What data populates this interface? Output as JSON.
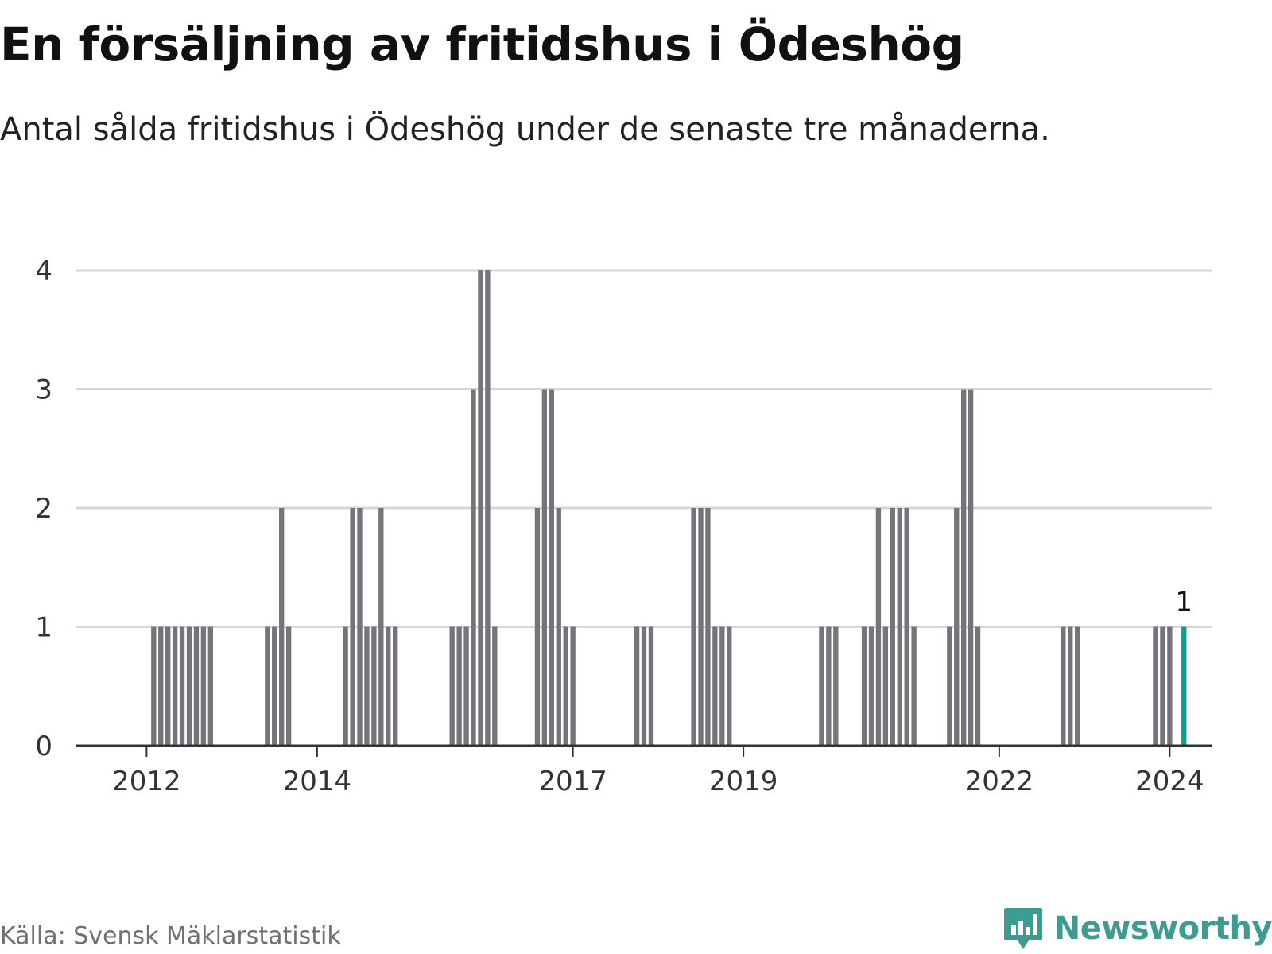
{
  "title": "En försäljning av fritidshus i Ödeshög",
  "subtitle": "Antal sålda fritidshus i Ödeshög under de senaste tre månaderna.",
  "source": "Källa: Svensk Mäklarstatistik",
  "brand": "Newsworthy",
  "colors": {
    "bar": "#75747a",
    "highlight": "#139c8e",
    "grid": "#d6d6d6",
    "axis": "#333333",
    "brand": "#3e9b91"
  },
  "chart_data": {
    "type": "bar",
    "title": "En försäljning av fritidshus i Ödeshög",
    "xlabel": "",
    "ylabel": "",
    "ylim": [
      0,
      4
    ],
    "yticks": [
      "0",
      "1",
      "2",
      "3",
      "4"
    ],
    "xticks": [
      "2012",
      "2014",
      "2017",
      "2019",
      "2022",
      "2024"
    ],
    "xlim": [
      "2011-03",
      "2024-07"
    ],
    "highlight_label": "1",
    "series": [
      {
        "name": "Antal sålda fritidshus",
        "points": [
          [
            "2012-02",
            1
          ],
          [
            "2012-03",
            1
          ],
          [
            "2012-04",
            1
          ],
          [
            "2012-05",
            1
          ],
          [
            "2012-06",
            1
          ],
          [
            "2012-07",
            1
          ],
          [
            "2012-08",
            1
          ],
          [
            "2012-09",
            1
          ],
          [
            "2012-10",
            1
          ],
          [
            "2013-06",
            1
          ],
          [
            "2013-07",
            1
          ],
          [
            "2013-08",
            2
          ],
          [
            "2013-09",
            1
          ],
          [
            "2014-05",
            1
          ],
          [
            "2014-06",
            2
          ],
          [
            "2014-07",
            2
          ],
          [
            "2014-08",
            1
          ],
          [
            "2014-09",
            1
          ],
          [
            "2014-10",
            2
          ],
          [
            "2014-11",
            1
          ],
          [
            "2014-12",
            1
          ],
          [
            "2015-08",
            1
          ],
          [
            "2015-09",
            1
          ],
          [
            "2015-10",
            1
          ],
          [
            "2015-11",
            3
          ],
          [
            "2015-12",
            4
          ],
          [
            "2016-01",
            4
          ],
          [
            "2016-02",
            1
          ],
          [
            "2016-08",
            2
          ],
          [
            "2016-09",
            3
          ],
          [
            "2016-10",
            3
          ],
          [
            "2016-11",
            2
          ],
          [
            "2016-12",
            1
          ],
          [
            "2017-01",
            1
          ],
          [
            "2017-10",
            1
          ],
          [
            "2017-11",
            1
          ],
          [
            "2017-12",
            1
          ],
          [
            "2018-06",
            2
          ],
          [
            "2018-07",
            2
          ],
          [
            "2018-08",
            2
          ],
          [
            "2018-09",
            1
          ],
          [
            "2018-10",
            1
          ],
          [
            "2018-11",
            1
          ],
          [
            "2019-12",
            1
          ],
          [
            "2020-01",
            1
          ],
          [
            "2020-02",
            1
          ],
          [
            "2020-06",
            1
          ],
          [
            "2020-07",
            1
          ],
          [
            "2020-08",
            2
          ],
          [
            "2020-09",
            1
          ],
          [
            "2020-10",
            2
          ],
          [
            "2020-11",
            2
          ],
          [
            "2020-12",
            2
          ],
          [
            "2021-01",
            1
          ],
          [
            "2021-06",
            1
          ],
          [
            "2021-07",
            2
          ],
          [
            "2021-08",
            3
          ],
          [
            "2021-09",
            3
          ],
          [
            "2021-10",
            1
          ],
          [
            "2022-10",
            1
          ],
          [
            "2022-11",
            1
          ],
          [
            "2022-12",
            1
          ],
          [
            "2023-11",
            1
          ],
          [
            "2023-12",
            1
          ],
          [
            "2024-01",
            1
          ],
          [
            "2024-03",
            1
          ]
        ]
      }
    ],
    "highlight": "2024-03"
  }
}
